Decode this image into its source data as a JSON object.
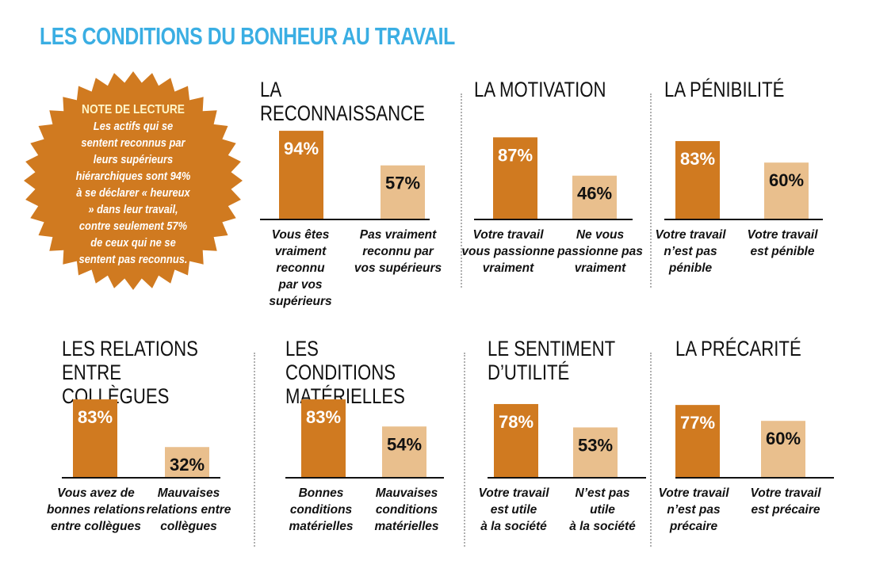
{
  "title": "LES CONDITIONS DU BONHEUR AU TRAVAIL",
  "note": {
    "heading": "NOTE DE LECTURE",
    "text": "Les actifs qui se sentent reconnus par leurs supérieurs hiérarchiques sont 94% à se déclarer « heureux » dans leur travail, contre seulement 57% de ceux qui ne se sentent pas reconnus."
  },
  "colors": {
    "dark": "#d07a20",
    "light": "#e9bf8d",
    "title": "#3aaee3",
    "badge": "#d07a20"
  },
  "chart_data": [
    {
      "type": "bar",
      "title": "LA RECONNAISSANCE",
      "categories": [
        "Vous êtes\nvraiment reconnu\npar vos supérieurs",
        "Pas vraiment\nreconnu par\nvos supérieurs"
      ],
      "values": [
        94,
        57
      ],
      "labels": [
        "94%",
        "57%"
      ],
      "ylim": [
        0,
        100
      ]
    },
    {
      "type": "bar",
      "title": "LA MOTIVATION",
      "categories": [
        "Votre travail\nvous passionne\nvraiment",
        "Ne vous\npassionne pas\nvraiment"
      ],
      "values": [
        87,
        46
      ],
      "labels": [
        "87%",
        "46%"
      ],
      "ylim": [
        0,
        100
      ]
    },
    {
      "type": "bar",
      "title": "LA PÉNIBILITÉ",
      "categories": [
        "Votre travail\nn’est pas\npénible",
        "Votre travail\nest pénible"
      ],
      "values": [
        83,
        60
      ],
      "labels": [
        "83%",
        "60%"
      ],
      "ylim": [
        0,
        100
      ]
    },
    {
      "type": "bar",
      "title": "LES RELATIONS\nENTRE COLLÈGUES",
      "categories": [
        "Vous avez de\nbonnes relations\nentre collègues",
        "Mauvaises\nrelations entre\ncollègues"
      ],
      "values": [
        83,
        32
      ],
      "labels": [
        "83%",
        "32%"
      ],
      "ylim": [
        0,
        100
      ]
    },
    {
      "type": "bar",
      "title": "LES CONDITIONS\nMATÉRIELLES",
      "categories": [
        "Bonnes\nconditions\nmatérielles",
        "Mauvaises\nconditions\nmatérielles"
      ],
      "values": [
        83,
        54
      ],
      "labels": [
        "83%",
        "54%"
      ],
      "ylim": [
        0,
        100
      ]
    },
    {
      "type": "bar",
      "title": "LE SENTIMENT\nD’UTILITÉ",
      "categories": [
        "Votre travail\nest utile\nà la société",
        "N’est pas\nutile\nà la société"
      ],
      "values": [
        78,
        53
      ],
      "labels": [
        "78%",
        "53%"
      ],
      "ylim": [
        0,
        100
      ]
    },
    {
      "type": "bar",
      "title": "LA PRÉCARITÉ",
      "categories": [
        "Votre travail\nn’est pas\nprécaire",
        "Votre travail\nest précaire"
      ],
      "values": [
        77,
        60
      ],
      "labels": [
        "77%",
        "60%"
      ],
      "ylim": [
        0,
        100
      ]
    }
  ]
}
